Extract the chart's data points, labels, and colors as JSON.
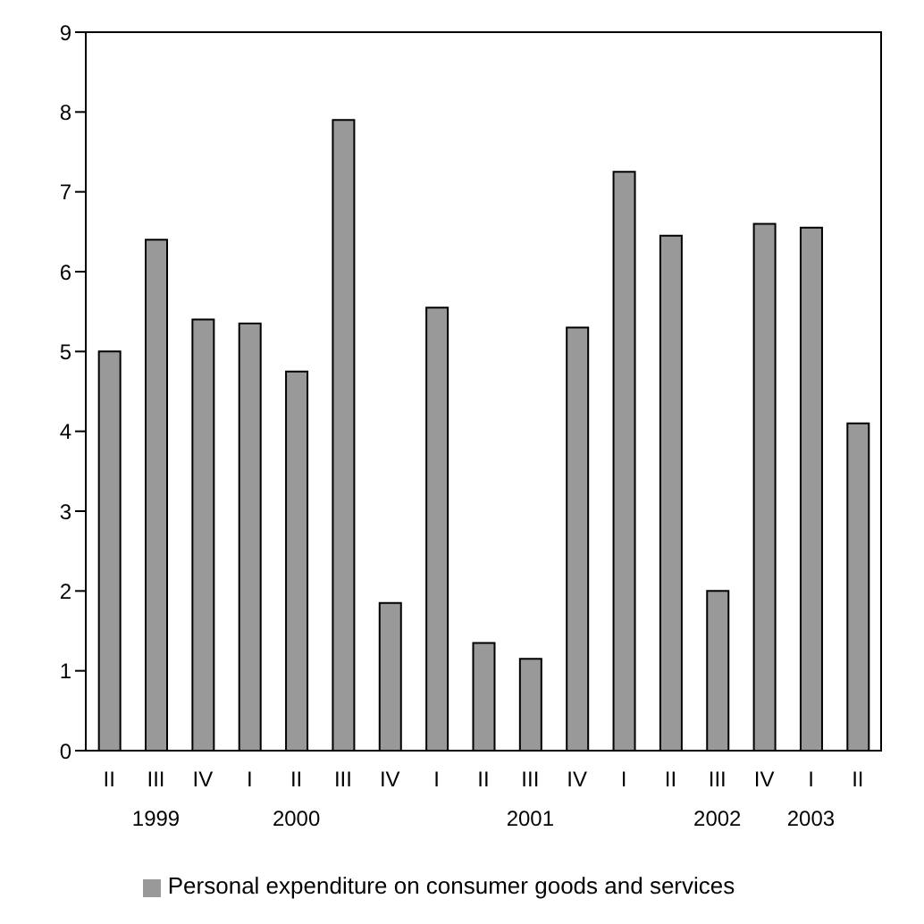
{
  "chart_data": {
    "type": "bar",
    "categories": [
      "II",
      "III\n1999",
      "IV",
      "I",
      "II\n2000",
      "III",
      "IV",
      "I",
      "II",
      "III\n2001",
      "IV",
      "I",
      "II",
      "III\n2002",
      "IV",
      "I\n2003",
      "II"
    ],
    "series": [
      {
        "name": "Personal expenditure on consumer goods and services",
        "color": "#999999",
        "values": [
          5.0,
          6.4,
          5.4,
          5.35,
          4.75,
          7.9,
          1.85,
          5.55,
          1.35,
          1.15,
          5.3,
          7.25,
          6.45,
          2.0,
          6.6,
          6.55,
          4.1
        ]
      }
    ],
    "ylim": [
      0,
      9
    ],
    "yticks": [
      0,
      1,
      2,
      3,
      4,
      5,
      6,
      7,
      8,
      9
    ],
    "legend": "bottom"
  }
}
